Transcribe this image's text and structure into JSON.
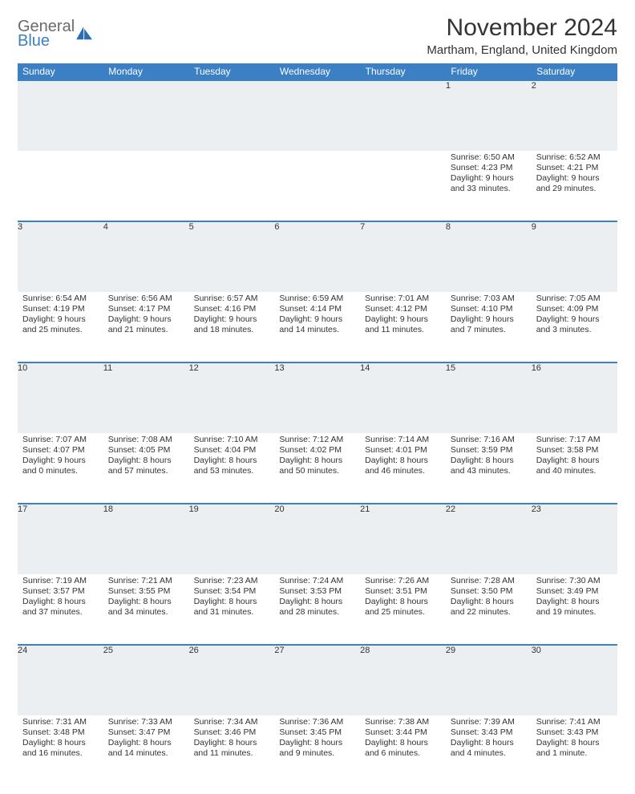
{
  "brand": {
    "general": "General",
    "blue": "Blue"
  },
  "title": "November 2024",
  "location": "Martham, England, United Kingdom",
  "colors": {
    "accent": "#3b7fc4",
    "daynum_bg": "#eceff1",
    "text": "#333333"
  },
  "day_headers": [
    "Sunday",
    "Monday",
    "Tuesday",
    "Wednesday",
    "Thursday",
    "Friday",
    "Saturday"
  ],
  "weeks": [
    [
      null,
      null,
      null,
      null,
      null,
      {
        "n": "1",
        "sr": "Sunrise: 6:50 AM",
        "ss": "Sunset: 4:23 PM",
        "dl": "Daylight: 9 hours and 33 minutes."
      },
      {
        "n": "2",
        "sr": "Sunrise: 6:52 AM",
        "ss": "Sunset: 4:21 PM",
        "dl": "Daylight: 9 hours and 29 minutes."
      }
    ],
    [
      {
        "n": "3",
        "sr": "Sunrise: 6:54 AM",
        "ss": "Sunset: 4:19 PM",
        "dl": "Daylight: 9 hours and 25 minutes."
      },
      {
        "n": "4",
        "sr": "Sunrise: 6:56 AM",
        "ss": "Sunset: 4:17 PM",
        "dl": "Daylight: 9 hours and 21 minutes."
      },
      {
        "n": "5",
        "sr": "Sunrise: 6:57 AM",
        "ss": "Sunset: 4:16 PM",
        "dl": "Daylight: 9 hours and 18 minutes."
      },
      {
        "n": "6",
        "sr": "Sunrise: 6:59 AM",
        "ss": "Sunset: 4:14 PM",
        "dl": "Daylight: 9 hours and 14 minutes."
      },
      {
        "n": "7",
        "sr": "Sunrise: 7:01 AM",
        "ss": "Sunset: 4:12 PM",
        "dl": "Daylight: 9 hours and 11 minutes."
      },
      {
        "n": "8",
        "sr": "Sunrise: 7:03 AM",
        "ss": "Sunset: 4:10 PM",
        "dl": "Daylight: 9 hours and 7 minutes."
      },
      {
        "n": "9",
        "sr": "Sunrise: 7:05 AM",
        "ss": "Sunset: 4:09 PM",
        "dl": "Daylight: 9 hours and 3 minutes."
      }
    ],
    [
      {
        "n": "10",
        "sr": "Sunrise: 7:07 AM",
        "ss": "Sunset: 4:07 PM",
        "dl": "Daylight: 9 hours and 0 minutes."
      },
      {
        "n": "11",
        "sr": "Sunrise: 7:08 AM",
        "ss": "Sunset: 4:05 PM",
        "dl": "Daylight: 8 hours and 57 minutes."
      },
      {
        "n": "12",
        "sr": "Sunrise: 7:10 AM",
        "ss": "Sunset: 4:04 PM",
        "dl": "Daylight: 8 hours and 53 minutes."
      },
      {
        "n": "13",
        "sr": "Sunrise: 7:12 AM",
        "ss": "Sunset: 4:02 PM",
        "dl": "Daylight: 8 hours and 50 minutes."
      },
      {
        "n": "14",
        "sr": "Sunrise: 7:14 AM",
        "ss": "Sunset: 4:01 PM",
        "dl": "Daylight: 8 hours and 46 minutes."
      },
      {
        "n": "15",
        "sr": "Sunrise: 7:16 AM",
        "ss": "Sunset: 3:59 PM",
        "dl": "Daylight: 8 hours and 43 minutes."
      },
      {
        "n": "16",
        "sr": "Sunrise: 7:17 AM",
        "ss": "Sunset: 3:58 PM",
        "dl": "Daylight: 8 hours and 40 minutes."
      }
    ],
    [
      {
        "n": "17",
        "sr": "Sunrise: 7:19 AM",
        "ss": "Sunset: 3:57 PM",
        "dl": "Daylight: 8 hours and 37 minutes."
      },
      {
        "n": "18",
        "sr": "Sunrise: 7:21 AM",
        "ss": "Sunset: 3:55 PM",
        "dl": "Daylight: 8 hours and 34 minutes."
      },
      {
        "n": "19",
        "sr": "Sunrise: 7:23 AM",
        "ss": "Sunset: 3:54 PM",
        "dl": "Daylight: 8 hours and 31 minutes."
      },
      {
        "n": "20",
        "sr": "Sunrise: 7:24 AM",
        "ss": "Sunset: 3:53 PM",
        "dl": "Daylight: 8 hours and 28 minutes."
      },
      {
        "n": "21",
        "sr": "Sunrise: 7:26 AM",
        "ss": "Sunset: 3:51 PM",
        "dl": "Daylight: 8 hours and 25 minutes."
      },
      {
        "n": "22",
        "sr": "Sunrise: 7:28 AM",
        "ss": "Sunset: 3:50 PM",
        "dl": "Daylight: 8 hours and 22 minutes."
      },
      {
        "n": "23",
        "sr": "Sunrise: 7:30 AM",
        "ss": "Sunset: 3:49 PM",
        "dl": "Daylight: 8 hours and 19 minutes."
      }
    ],
    [
      {
        "n": "24",
        "sr": "Sunrise: 7:31 AM",
        "ss": "Sunset: 3:48 PM",
        "dl": "Daylight: 8 hours and 16 minutes."
      },
      {
        "n": "25",
        "sr": "Sunrise: 7:33 AM",
        "ss": "Sunset: 3:47 PM",
        "dl": "Daylight: 8 hours and 14 minutes."
      },
      {
        "n": "26",
        "sr": "Sunrise: 7:34 AM",
        "ss": "Sunset: 3:46 PM",
        "dl": "Daylight: 8 hours and 11 minutes."
      },
      {
        "n": "27",
        "sr": "Sunrise: 7:36 AM",
        "ss": "Sunset: 3:45 PM",
        "dl": "Daylight: 8 hours and 9 minutes."
      },
      {
        "n": "28",
        "sr": "Sunrise: 7:38 AM",
        "ss": "Sunset: 3:44 PM",
        "dl": "Daylight: 8 hours and 6 minutes."
      },
      {
        "n": "29",
        "sr": "Sunrise: 7:39 AM",
        "ss": "Sunset: 3:43 PM",
        "dl": "Daylight: 8 hours and 4 minutes."
      },
      {
        "n": "30",
        "sr": "Sunrise: 7:41 AM",
        "ss": "Sunset: 3:43 PM",
        "dl": "Daylight: 8 hours and 1 minute."
      }
    ]
  ]
}
